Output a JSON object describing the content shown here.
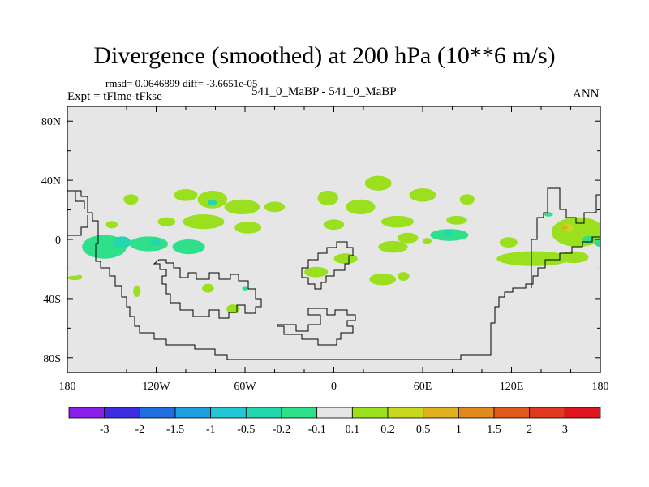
{
  "header": {
    "title": "Divergence (smoothed) at 200 hPa (10**6 m/s)",
    "stats": "rmsd= 0.0646899 diff= -3.6651e-05",
    "expt": "Expt = tFlme-tFkse",
    "case": "541_0_MaBP - 541_0_MaBP",
    "season": "ANN"
  },
  "chart_data": {
    "type": "heatmap",
    "title": "Divergence (smoothed) at 200 hPa (10**6 m/s)",
    "xlabel": "",
    "ylabel": "",
    "xlim": [
      -180,
      180
    ],
    "ylim": [
      -90,
      90
    ],
    "x_ticks": [
      {
        "value": -180,
        "label": "180"
      },
      {
        "value": -120,
        "label": "120W"
      },
      {
        "value": -60,
        "label": "60W"
      },
      {
        "value": 0,
        "label": "0"
      },
      {
        "value": 60,
        "label": "60E"
      },
      {
        "value": 120,
        "label": "120E"
      },
      {
        "value": 180,
        "label": "180"
      }
    ],
    "y_ticks": [
      {
        "value": 80,
        "label": "80N"
      },
      {
        "value": 40,
        "label": "40N"
      },
      {
        "value": 0,
        "label": "0"
      },
      {
        "value": -40,
        "label": "40S"
      },
      {
        "value": -80,
        "label": "80S"
      }
    ],
    "levels": [
      "-3",
      "-2",
      "-1.5",
      "-1",
      "-0.5",
      "-0.2",
      "-0.1",
      "0.1",
      "0.2",
      "0.5",
      "1",
      "1.5",
      "2",
      "3"
    ],
    "colors": [
      "#8a1ee8",
      "#3a2ee0",
      "#1f6fe0",
      "#1e9fe0",
      "#22c6d6",
      "#22d6ae",
      "#2ee08a",
      "#e6e6e6",
      "#9ae01e",
      "#c8d81e",
      "#e0b01e",
      "#e08a1e",
      "#e05a1e",
      "#e03a1e",
      "#e0141e"
    ],
    "background_color": "#e6e6e6",
    "blobs": [
      {
        "lon": -137,
        "lat": 27,
        "rx": 5,
        "ry": 3.5,
        "color": "#9ae01e"
      },
      {
        "lon": -100,
        "lat": 30,
        "rx": 8,
        "ry": 4,
        "color": "#9ae01e"
      },
      {
        "lon": -82,
        "lat": 27,
        "rx": 10,
        "ry": 6,
        "color": "#9ae01e"
      },
      {
        "lon": -82,
        "lat": 25,
        "rx": 3,
        "ry": 2,
        "color": "#22d6ae"
      },
      {
        "lon": -62,
        "lat": 22,
        "rx": 12,
        "ry": 5,
        "color": "#9ae01e"
      },
      {
        "lon": -40,
        "lat": 22,
        "rx": 7,
        "ry": 3.5,
        "color": "#9ae01e"
      },
      {
        "lon": -113,
        "lat": 12,
        "rx": 6,
        "ry": 3,
        "color": "#9ae01e"
      },
      {
        "lon": -88,
        "lat": 12,
        "rx": 14,
        "ry": 5,
        "color": "#9ae01e"
      },
      {
        "lon": -58,
        "lat": 8,
        "rx": 9,
        "ry": 4,
        "color": "#9ae01e"
      },
      {
        "lon": -150,
        "lat": 10,
        "rx": 4,
        "ry": 2.5,
        "color": "#9ae01e"
      },
      {
        "lon": -155,
        "lat": -5,
        "rx": 15,
        "ry": 8,
        "color": "#2ee08a"
      },
      {
        "lon": -143,
        "lat": -2,
        "rx": 6,
        "ry": 4,
        "color": "#22d6ae"
      },
      {
        "lon": -125,
        "lat": -3,
        "rx": 13,
        "ry": 5,
        "color": "#2ee08a"
      },
      {
        "lon": -120,
        "lat": -2,
        "rx": 4,
        "ry": 2,
        "color": "#22d6ae"
      },
      {
        "lon": -98,
        "lat": -5,
        "rx": 11,
        "ry": 5,
        "color": "#2ee08a"
      },
      {
        "lon": -175,
        "lat": -26,
        "rx": 5,
        "ry": 1.5,
        "color": "#9ae01e"
      },
      {
        "lon": -133,
        "lat": -35,
        "rx": 2.5,
        "ry": 4,
        "color": "#9ae01e"
      },
      {
        "lon": -85,
        "lat": -33,
        "rx": 4,
        "ry": 3,
        "color": "#9ae01e"
      },
      {
        "lon": -60,
        "lat": -33,
        "rx": 2,
        "ry": 1.5,
        "color": "#2ee08a"
      },
      {
        "lon": -68,
        "lat": -47,
        "rx": 4.5,
        "ry": 3,
        "color": "#9ae01e"
      },
      {
        "lon": -4,
        "lat": 28,
        "rx": 7,
        "ry": 5,
        "color": "#9ae01e"
      },
      {
        "lon": 30,
        "lat": 38,
        "rx": 9,
        "ry": 5,
        "color": "#9ae01e"
      },
      {
        "lon": 18,
        "lat": 22,
        "rx": 10,
        "ry": 5,
        "color": "#9ae01e"
      },
      {
        "lon": 60,
        "lat": 30,
        "rx": 9,
        "ry": 4.5,
        "color": "#9ae01e"
      },
      {
        "lon": 43,
        "lat": 12,
        "rx": 11,
        "ry": 4,
        "color": "#9ae01e"
      },
      {
        "lon": 90,
        "lat": 27,
        "rx": 5,
        "ry": 3.5,
        "color": "#9ae01e"
      },
      {
        "lon": 83,
        "lat": 13,
        "rx": 7,
        "ry": 3,
        "color": "#9ae01e"
      },
      {
        "lon": 0,
        "lat": 10,
        "rx": 7,
        "ry": 3.5,
        "color": "#9ae01e"
      },
      {
        "lon": 50,
        "lat": 1,
        "rx": 7,
        "ry": 3.5,
        "color": "#9ae01e"
      },
      {
        "lon": 78,
        "lat": 3,
        "rx": 13,
        "ry": 4,
        "color": "#2ee08a"
      },
      {
        "lon": 77,
        "lat": 4,
        "rx": 3,
        "ry": 2,
        "color": "#22d6ae"
      },
      {
        "lon": 63,
        "lat": -1,
        "rx": 3,
        "ry": 2,
        "color": "#9ae01e"
      },
      {
        "lon": 40,
        "lat": -5,
        "rx": 10,
        "ry": 4,
        "color": "#9ae01e"
      },
      {
        "lon": 118,
        "lat": -2,
        "rx": 6,
        "ry": 3.5,
        "color": "#9ae01e"
      },
      {
        "lon": 8,
        "lat": -13,
        "rx": 8,
        "ry": 3.5,
        "color": "#9ae01e"
      },
      {
        "lon": -12,
        "lat": -22,
        "rx": 8,
        "ry": 3.5,
        "color": "#9ae01e"
      },
      {
        "lon": 33,
        "lat": -27,
        "rx": 9,
        "ry": 4,
        "color": "#9ae01e"
      },
      {
        "lon": 47,
        "lat": -25,
        "rx": 4,
        "ry": 3,
        "color": "#9ae01e"
      },
      {
        "lon": -172,
        "lat": -25,
        "rx": 2,
        "ry": 1,
        "color": "#9ae01e"
      },
      {
        "lon": 135,
        "lat": -13,
        "rx": 25,
        "ry": 5,
        "color": "#9ae01e"
      },
      {
        "lon": 162,
        "lat": -12,
        "rx": 10,
        "ry": 4,
        "color": "#9ae01e"
      },
      {
        "lon": 165,
        "lat": 5,
        "rx": 18,
        "ry": 10,
        "color": "#9ae01e"
      },
      {
        "lon": 158,
        "lat": 8,
        "rx": 4,
        "ry": 2.5,
        "color": "#c8d81e"
      },
      {
        "lon": 156,
        "lat": 8,
        "rx": 2,
        "ry": 1.5,
        "color": "#e0b01e"
      },
      {
        "lon": 172,
        "lat": 0,
        "rx": 4,
        "ry": 2.5,
        "color": "#2ee08a"
      },
      {
        "lon": 180,
        "lat": -2,
        "rx": 4,
        "ry": 3,
        "color": "#2ee08a"
      },
      {
        "lon": 145,
        "lat": 17,
        "rx": 3,
        "ry": 1.5,
        "color": "#2ee08a"
      }
    ]
  }
}
